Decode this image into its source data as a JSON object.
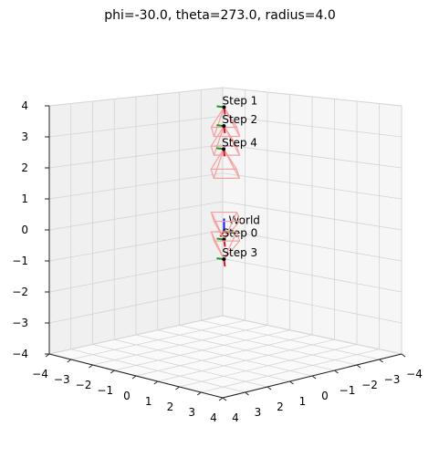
{
  "chart_data": {
    "type": "3d-camera-trajectory",
    "title": "phi=-30.0, theta=273.0, radius=4.0",
    "view": {
      "elev": 10,
      "azim": 225
    },
    "axes": {
      "x": {
        "label": "",
        "lim": [
          -4,
          4
        ],
        "ticks": [
          "−4",
          "−3",
          "−2",
          "−1",
          "0",
          "1",
          "2",
          "3",
          "4"
        ]
      },
      "y": {
        "label": "",
        "lim": [
          -4,
          4
        ],
        "ticks": [
          "−4",
          "−3",
          "−2",
          "−1",
          "0",
          "1",
          "2",
          "3",
          "4"
        ]
      },
      "z": {
        "label": "",
        "lim": [
          -4,
          4
        ],
        "ticks": [
          "−4",
          "−3",
          "−2",
          "−1",
          "0",
          "1",
          "2",
          "3",
          "4"
        ]
      }
    },
    "grid": true,
    "world_frame": {
      "label": "World",
      "origin": [
        0,
        0,
        0
      ]
    },
    "cameras": [
      {
        "label": "Step 0",
        "position": [
          0.2,
          0.2,
          -0.2
        ]
      },
      {
        "label": "Step 1",
        "position": [
          0,
          0,
          4.0
        ]
      },
      {
        "label": "Step 2",
        "position": [
          -1.2,
          -1.2,
          3.0
        ]
      },
      {
        "label": "Step 3",
        "position": [
          0.9,
          0.9,
          -0.6
        ]
      },
      {
        "label": "Step 4",
        "position": [
          -2.0,
          -2.0,
          2.0
        ]
      }
    ],
    "colors": {
      "frustum": "#f4a0a0",
      "axis_x": "#e0142a",
      "axis_y": "#1a9a1a",
      "axis_z": "#1a1aff",
      "grid": "#d4d4d4",
      "pane_left": "#f0f0f0",
      "pane_right": "#f6f6f6",
      "pane_floor": "#fafafa"
    }
  }
}
